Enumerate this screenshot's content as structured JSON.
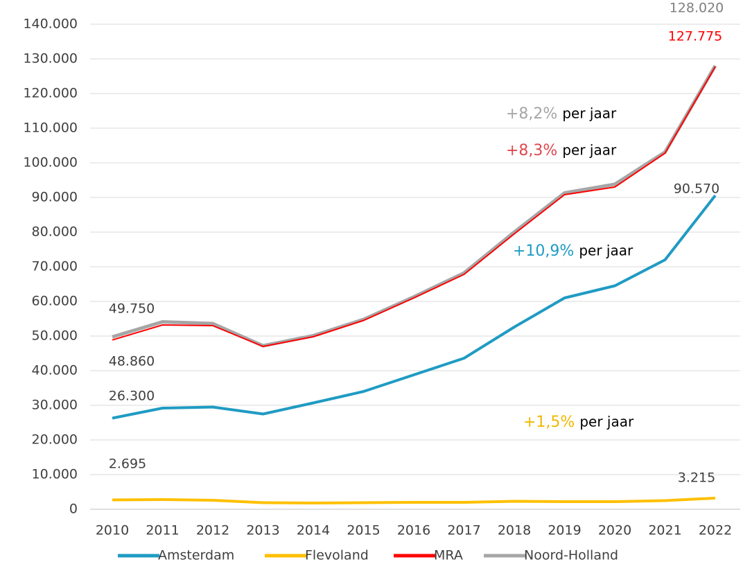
{
  "chart_data": {
    "type": "line",
    "categories": [
      "2010",
      "2011",
      "2012",
      "2013",
      "2014",
      "2015",
      "2016",
      "2017",
      "2018",
      "2019",
      "2020",
      "2021",
      "2022"
    ],
    "ylim": [
      0,
      140000
    ],
    "yticks": [
      0,
      {
        "value": 10000,
        "label": "10.000"
      },
      {
        "value": 20000,
        "label": "20.000"
      },
      {
        "value": 30000,
        "label": "30.000"
      },
      {
        "value": 40000,
        "label": "40.000"
      },
      {
        "value": 50000,
        "label": "50.000"
      },
      {
        "value": 60000,
        "label": "60.000"
      },
      {
        "value": 70000,
        "label": "70.000"
      },
      {
        "value": 80000,
        "label": "80.000"
      },
      {
        "value": 90000,
        "label": "90.000"
      },
      {
        "value": 100000,
        "label": "100.000"
      },
      {
        "value": 110000,
        "label": "110.000"
      },
      {
        "value": 120000,
        "label": "120.000"
      },
      {
        "value": 130000,
        "label": "130.000"
      },
      {
        "value": 140000,
        "label": "140.000"
      }
    ],
    "grid": true,
    "legend": "bottom",
    "series": [
      {
        "name": "Amsterdam",
        "color": "#1f9bc3",
        "values": [
          26300,
          29200,
          29500,
          27500,
          30700,
          34000,
          38800,
          43600,
          52600,
          61000,
          64500,
          72000,
          90570
        ],
        "value_labels": [
          "26.300",
          null,
          null,
          null,
          null,
          null,
          null,
          null,
          null,
          null,
          null,
          null,
          "90.570"
        ]
      },
      {
        "name": "Flevoland",
        "color": "#ffc000",
        "values": [
          2695,
          2800,
          2600,
          1900,
          1800,
          1900,
          2000,
          2000,
          2300,
          2200,
          2200,
          2500,
          3215
        ],
        "value_labels": [
          "2.695",
          null,
          null,
          null,
          null,
          null,
          null,
          null,
          null,
          null,
          null,
          null,
          "3.215"
        ]
      },
      {
        "name": "MRA",
        "color": "#ff0000",
        "values": [
          48860,
          53200,
          53000,
          47000,
          49800,
          54500,
          61000,
          67800,
          79500,
          90800,
          93000,
          102800,
          127775
        ],
        "value_labels": [
          "48.860",
          null,
          null,
          null,
          null,
          null,
          null,
          null,
          null,
          null,
          null,
          null,
          "127.775"
        ]
      },
      {
        "name": "Noord-Holland",
        "color": "#a6a6a6",
        "values": [
          49750,
          54100,
          53600,
          47200,
          50100,
          54800,
          61300,
          68200,
          80000,
          91300,
          93800,
          103100,
          128020
        ],
        "value_labels": [
          "49.750",
          null,
          null,
          null,
          null,
          null,
          null,
          null,
          null,
          null,
          null,
          null,
          "128.020"
        ]
      }
    ],
    "annotations": [
      {
        "text": "+8,2%",
        "suffix": "per jaar",
        "color": "#a6a6a6"
      },
      {
        "text": "+8,3%",
        "suffix": "per jaar",
        "color": "#e0474c"
      },
      {
        "text": "+10,9%",
        "suffix": "per jaar",
        "color": "#1f9bc3"
      },
      {
        "text": "+1,5%",
        "suffix": "per jaar",
        "color": "#f0b800"
      }
    ]
  }
}
